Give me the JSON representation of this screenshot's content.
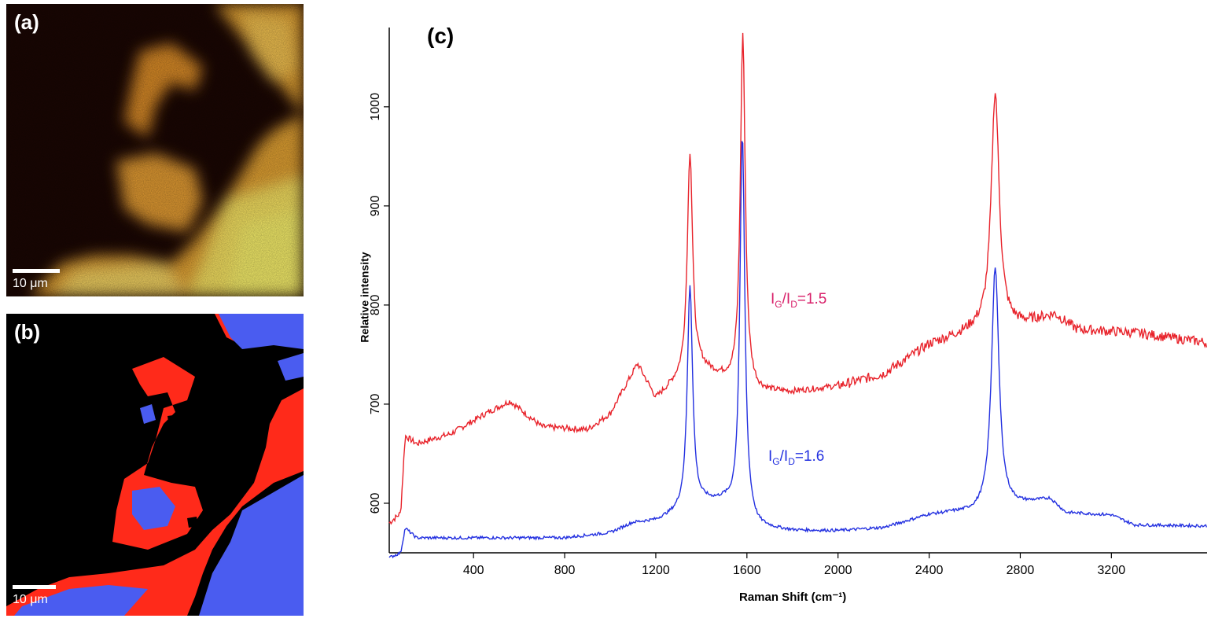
{
  "panels": {
    "a": {
      "label": "(a)",
      "scale_bar": "10 μm"
    },
    "b": {
      "label": "(b)",
      "scale_bar": "10 μm"
    },
    "c": {
      "label": "(c)"
    }
  },
  "colors": {
    "red_series": "#e8232b",
    "blue_series": "#2330e0",
    "map_red": "#ff2a1a",
    "map_blue": "#4a5cf0",
    "map_dark": "#1a0603",
    "map_bright": "#f6ee6a"
  },
  "chart_data": {
    "type": "line",
    "xlabel": "Raman Shift (cm⁻¹)",
    "ylabel": "Relative intensity",
    "xlim": [
      30,
      3620
    ],
    "ylim": [
      550,
      1080
    ],
    "xticks": [
      400,
      800,
      1200,
      1600,
      2000,
      2400,
      2800,
      3200
    ],
    "yticks": [
      600,
      700,
      800,
      900,
      1000
    ],
    "grid": false,
    "series": [
      {
        "name": "",
        "annotation": {
          "I": "I",
          "G": "G",
          "slash": "/I",
          "D": "D",
          "value": "=1.5"
        },
        "color": "#e8232b",
        "baseline": [
          [
            30,
            580
          ],
          [
            80,
            590
          ],
          [
            100,
            668
          ],
          [
            150,
            660
          ],
          [
            300,
            670
          ],
          [
            450,
            690
          ],
          [
            560,
            703
          ],
          [
            700,
            677
          ],
          [
            900,
            674
          ],
          [
            1000,
            690
          ],
          [
            1120,
            740
          ],
          [
            1200,
            705
          ],
          [
            1280,
            720
          ],
          [
            1400,
            735
          ],
          [
            1500,
            725
          ],
          [
            1650,
            712
          ],
          [
            1800,
            712
          ],
          [
            2000,
            718
          ],
          [
            2200,
            730
          ],
          [
            2400,
            760
          ],
          [
            2600,
            775
          ],
          [
            2800,
            780
          ],
          [
            2950,
            790
          ],
          [
            3050,
            775
          ],
          [
            3300,
            772
          ],
          [
            3620,
            762
          ]
        ],
        "peaks": [
          {
            "x": 1350,
            "height": 225,
            "width": 28
          },
          {
            "x": 1582,
            "height": 355,
            "width": 26
          },
          {
            "x": 2690,
            "height": 238,
            "width": 42
          }
        ]
      },
      {
        "name": "",
        "annotation": {
          "I": "I",
          "G": "G",
          "slash": "/I",
          "D": "D",
          "value": "=1.6"
        },
        "color": "#2330e0",
        "baseline": [
          [
            30,
            545
          ],
          [
            80,
            550
          ],
          [
            100,
            575
          ],
          [
            150,
            565
          ],
          [
            300,
            565
          ],
          [
            600,
            565
          ],
          [
            800,
            565
          ],
          [
            1000,
            570
          ],
          [
            1100,
            580
          ],
          [
            1200,
            582
          ],
          [
            1300,
            590
          ],
          [
            1420,
            600
          ],
          [
            1500,
            600
          ],
          [
            1650,
            575
          ],
          [
            1800,
            572
          ],
          [
            2000,
            572
          ],
          [
            2200,
            575
          ],
          [
            2400,
            588
          ],
          [
            2500,
            590
          ],
          [
            2600,
            590
          ],
          [
            2800,
            598
          ],
          [
            2930,
            604
          ],
          [
            3000,
            590
          ],
          [
            3200,
            588
          ],
          [
            3300,
            578
          ],
          [
            3620,
            577
          ]
        ],
        "peaks": [
          {
            "x": 1350,
            "height": 225,
            "width": 28
          },
          {
            "x": 1580,
            "height": 385,
            "width": 26
          },
          {
            "x": 2690,
            "height": 245,
            "width": 40
          }
        ]
      }
    ]
  }
}
